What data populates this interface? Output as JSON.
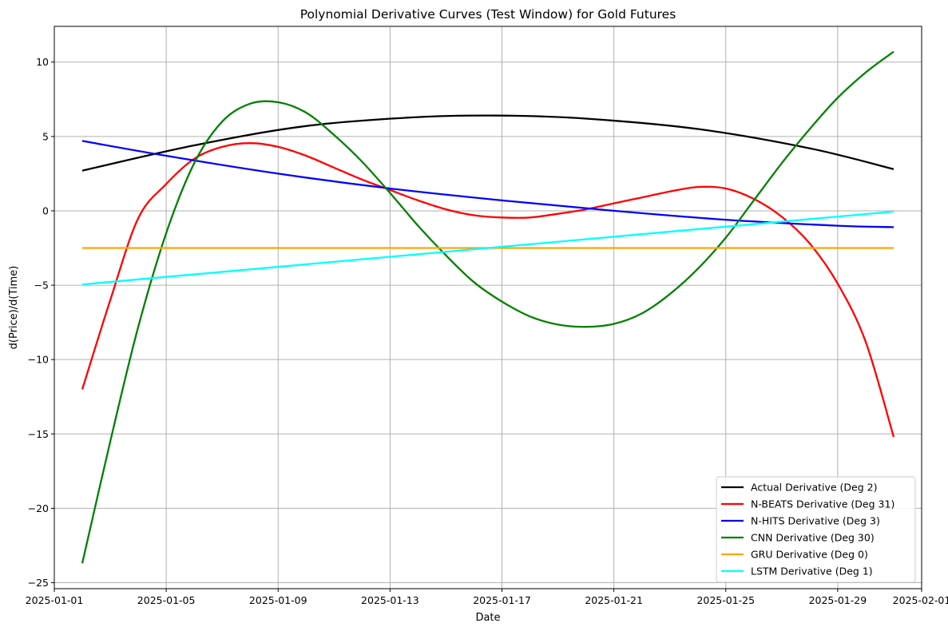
{
  "chart_data": {
    "type": "line",
    "title": "Polynomial Derivative Curves (Test Window) for Gold Futures",
    "xlabel": "Date",
    "ylabel": "d(Price)/d(Time)",
    "x_domain": [
      "2025-01-01",
      "2025-02-01"
    ],
    "xlim": [
      "2025-01-01",
      "2025-02-01"
    ],
    "ylim": [
      -25.4,
      12.4
    ],
    "x_ticks": [
      "2025-01-01",
      "2025-01-05",
      "2025-01-09",
      "2025-01-13",
      "2025-01-17",
      "2025-01-21",
      "2025-01-25",
      "2025-01-29",
      "2025-02-01"
    ],
    "y_ticks": [
      10,
      5,
      0,
      -5,
      -10,
      -15,
      -20,
      -25
    ],
    "grid": true,
    "legend_position": "lower-right",
    "series": [
      {
        "name": "Actual Derivative (Deg 2)",
        "color": "#000000",
        "points": [
          [
            "2025-01-02",
            2.7
          ],
          [
            "2025-01-06",
            4.4
          ],
          [
            "2025-01-10",
            5.7
          ],
          [
            "2025-01-14",
            6.3
          ],
          [
            "2025-01-17",
            6.4
          ],
          [
            "2025-01-20",
            6.2
          ],
          [
            "2025-01-24",
            5.5
          ],
          [
            "2025-01-28",
            4.2
          ],
          [
            "2025-01-31",
            2.8
          ]
        ]
      },
      {
        "name": "N-BEATS Derivative (Deg 31)",
        "color": "#ff0000",
        "points": [
          [
            "2025-01-02",
            -12.0
          ],
          [
            "2025-01-03",
            -6.0
          ],
          [
            "2025-01-04",
            -0.5
          ],
          [
            "2025-01-05",
            1.8
          ],
          [
            "2025-01-06",
            3.5
          ],
          [
            "2025-01-07",
            4.3
          ],
          [
            "2025-01-08",
            4.55
          ],
          [
            "2025-01-09",
            4.3
          ],
          [
            "2025-01-10",
            3.7
          ],
          [
            "2025-01-11",
            2.9
          ],
          [
            "2025-01-12",
            2.1
          ],
          [
            "2025-01-13",
            1.4
          ],
          [
            "2025-01-14",
            0.7
          ],
          [
            "2025-01-15",
            0.1
          ],
          [
            "2025-01-16",
            -0.3
          ],
          [
            "2025-01-17",
            -0.45
          ],
          [
            "2025-01-18",
            -0.45
          ],
          [
            "2025-01-19",
            -0.2
          ],
          [
            "2025-01-20",
            0.1
          ],
          [
            "2025-01-21",
            0.5
          ],
          [
            "2025-01-22",
            0.9
          ],
          [
            "2025-01-23",
            1.3
          ],
          [
            "2025-01-24",
            1.6
          ],
          [
            "2025-01-25",
            1.5
          ],
          [
            "2025-01-26",
            0.8
          ],
          [
            "2025-01-27",
            -0.4
          ],
          [
            "2025-01-28",
            -2.2
          ],
          [
            "2025-01-29",
            -4.9
          ],
          [
            "2025-01-30",
            -8.8
          ],
          [
            "2025-01-31",
            -15.2
          ]
        ]
      },
      {
        "name": "N-HITS Derivative (Deg 3)",
        "color": "#0000ff",
        "points": [
          [
            "2025-01-02",
            4.7
          ],
          [
            "2025-01-05",
            3.7
          ],
          [
            "2025-01-09",
            2.5
          ],
          [
            "2025-01-13",
            1.5
          ],
          [
            "2025-01-17",
            0.7
          ],
          [
            "2025-01-21",
            0.0
          ],
          [
            "2025-01-25",
            -0.6
          ],
          [
            "2025-01-29",
            -1.0
          ],
          [
            "2025-01-31",
            -1.1
          ]
        ]
      },
      {
        "name": "CNN Derivative (Deg 30)",
        "color": "#008000",
        "points": [
          [
            "2025-01-02",
            -23.7
          ],
          [
            "2025-01-03",
            -15.5
          ],
          [
            "2025-01-04",
            -7.8
          ],
          [
            "2025-01-05",
            -1.5
          ],
          [
            "2025-01-06",
            3.2
          ],
          [
            "2025-01-07",
            6.0
          ],
          [
            "2025-01-08",
            7.2
          ],
          [
            "2025-01-09",
            7.3
          ],
          [
            "2025-01-10",
            6.6
          ],
          [
            "2025-01-11",
            5.1
          ],
          [
            "2025-01-12",
            3.3
          ],
          [
            "2025-01-13",
            1.2
          ],
          [
            "2025-01-14",
            -1.0
          ],
          [
            "2025-01-15",
            -3.0
          ],
          [
            "2025-01-16",
            -4.8
          ],
          [
            "2025-01-17",
            -6.1
          ],
          [
            "2025-01-18",
            -7.1
          ],
          [
            "2025-01-19",
            -7.65
          ],
          [
            "2025-01-20",
            -7.8
          ],
          [
            "2025-01-21",
            -7.6
          ],
          [
            "2025-01-22",
            -6.9
          ],
          [
            "2025-01-23",
            -5.6
          ],
          [
            "2025-01-24",
            -3.9
          ],
          [
            "2025-01-25",
            -1.8
          ],
          [
            "2025-01-26",
            0.7
          ],
          [
            "2025-01-27",
            3.2
          ],
          [
            "2025-01-28",
            5.5
          ],
          [
            "2025-01-29",
            7.6
          ],
          [
            "2025-01-30",
            9.3
          ],
          [
            "2025-01-31",
            10.7
          ]
        ]
      },
      {
        "name": "GRU Derivative (Deg 0)",
        "color": "#ffa500",
        "points": [
          [
            "2025-01-02",
            -2.5
          ],
          [
            "2025-01-31",
            -2.5
          ]
        ]
      },
      {
        "name": "LSTM Derivative (Deg 1)",
        "color": "#00ffff",
        "points": [
          [
            "2025-01-02",
            -4.95
          ],
          [
            "2025-01-31",
            -0.05
          ]
        ]
      }
    ]
  }
}
